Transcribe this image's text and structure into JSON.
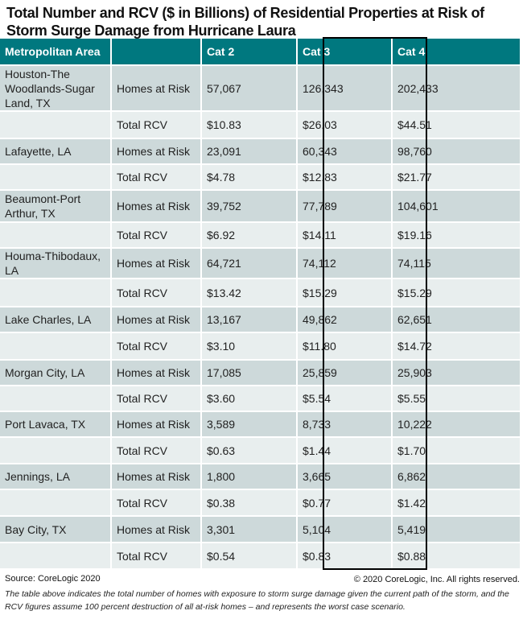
{
  "title": "Total Number and RCV ($ in Billions) of Residential Properties at Risk of Storm Surge Damage from Hurricane Laura",
  "chart_data": {
    "type": "table",
    "columns": [
      "Metropolitan Area",
      "",
      "Cat 2",
      "Cat 3",
      "Cat 4"
    ],
    "highlighted_column": "Cat 3",
    "rows": [
      [
        "Houston-The Woodlands-Sugar Land, TX",
        "Homes at Risk",
        "57,067",
        "126,343",
        "202,433"
      ],
      [
        "",
        "Total RCV",
        "$10.83",
        "$26.03",
        "$44.51"
      ],
      [
        "Lafayette, LA",
        "Homes at Risk",
        "23,091",
        "60,343",
        "98,760"
      ],
      [
        "",
        "Total RCV",
        "$4.78",
        "$12.83",
        "$21.77"
      ],
      [
        "Beaumont-Port Arthur, TX",
        "Homes at Risk",
        "39,752",
        "77,789",
        "104,601"
      ],
      [
        "",
        "Total RCV",
        "$6.92",
        "$14.11",
        "$19.16"
      ],
      [
        "Houma-Thibodaux, LA",
        "Homes at Risk",
        "64,721",
        "74,112",
        "74,115"
      ],
      [
        "",
        "Total RCV",
        "$13.42",
        "$15.29",
        "$15.29"
      ],
      [
        "Lake Charles, LA",
        "Homes at Risk",
        "13,167",
        "49,862",
        "62,651"
      ],
      [
        "",
        "Total RCV",
        "$3.10",
        "$11.80",
        "$14.72"
      ],
      [
        "Morgan City, LA",
        "Homes at Risk",
        "17,085",
        "25,859",
        "25,903"
      ],
      [
        "",
        "Total RCV",
        "$3.60",
        "$5.54",
        "$5.55"
      ],
      [
        "Port Lavaca, TX",
        "Homes at Risk",
        "3,589",
        "8,733",
        "10,222"
      ],
      [
        "",
        "Total RCV",
        "$0.63",
        "$1.44",
        "$1.70"
      ],
      [
        "Jennings, LA",
        "Homes at Risk",
        "1,800",
        "3,665",
        "6,862"
      ],
      [
        "",
        "Total RCV",
        "$0.38",
        "$0.77",
        "$1.42"
      ],
      [
        "Bay City, TX",
        "Homes at Risk",
        "3,301",
        "5,104",
        "5,419"
      ],
      [
        "",
        "Total RCV",
        "$0.54",
        "$0.83",
        "$0.88"
      ]
    ]
  },
  "colors": {
    "header": "#00787f",
    "row_dark": "#cdd9da",
    "row_light": "#e8eeee"
  },
  "footer": {
    "source": "Source: CoreLogic 2020",
    "copyright": "© 2020 CoreLogic, Inc. All rights reserved.",
    "note": "The table above indicates the total number of homes with exposure to storm surge damage given the current path of the storm, and the RCV figures assume 100 percent destruction of all at-risk homes – and represents the worst case scenario."
  }
}
